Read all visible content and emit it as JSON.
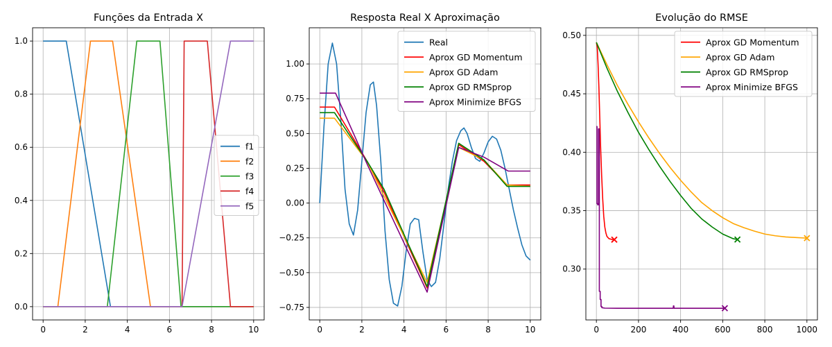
{
  "chart_data": [
    {
      "type": "line",
      "title": "Funções da Entrada X",
      "xlabel": "",
      "ylabel": "",
      "xlim": [
        -0.5,
        10.5
      ],
      "ylim": [
        -0.05,
        1.05
      ],
      "xticks": [
        0,
        2,
        4,
        6,
        8,
        10
      ],
      "xtick_labels": [
        "0",
        "2",
        "4",
        "6",
        "8",
        "10"
      ],
      "yticks": [
        0.0,
        0.2,
        0.4,
        0.6,
        0.8,
        1.0
      ],
      "ytick_labels": [
        "0.0",
        "0.2",
        "0.4",
        "0.6",
        "0.8",
        "1.0"
      ],
      "grid": true,
      "legend_position": "center-right",
      "series": [
        {
          "name": "f1",
          "color": "#1f77b4",
          "x": [
            0,
            1.1,
            3.2,
            10
          ],
          "y": [
            1,
            1,
            0,
            0
          ]
        },
        {
          "name": "f2",
          "color": "#ff7f0e",
          "x": [
            0,
            0.7,
            2.25,
            3.3,
            5.1,
            10
          ],
          "y": [
            0,
            0,
            1,
            1,
            0,
            0
          ]
        },
        {
          "name": "f3",
          "color": "#2ca02c",
          "x": [
            0,
            3.05,
            4.45,
            5.55,
            6.55,
            10
          ],
          "y": [
            0,
            0,
            1,
            1,
            0,
            0
          ]
        },
        {
          "name": "f4",
          "color": "#d62728",
          "x": [
            0,
            6.6,
            6.7,
            7.8,
            8.9,
            10
          ],
          "y": [
            0,
            0,
            1,
            1,
            0,
            0
          ]
        },
        {
          "name": "f5",
          "color": "#9467bd",
          "x": [
            0,
            6.6,
            8.9,
            10
          ],
          "y": [
            0,
            0,
            1,
            1
          ]
        }
      ]
    },
    {
      "type": "line",
      "title": "Resposta Real X Aproximação",
      "xlabel": "",
      "ylabel": "",
      "xlim": [
        -0.5,
        10.5
      ],
      "ylim": [
        -0.84,
        1.26
      ],
      "xticks": [
        0,
        2,
        4,
        6,
        8,
        10
      ],
      "xtick_labels": [
        "0",
        "2",
        "4",
        "6",
        "8",
        "10"
      ],
      "yticks": [
        -0.75,
        -0.5,
        -0.25,
        0.0,
        0.25,
        0.5,
        0.75,
        1.0
      ],
      "ytick_labels": [
        "−0.75",
        "−0.50",
        "−0.25",
        "0.00",
        "0.25",
        "0.50",
        "0.75",
        "1.00"
      ],
      "grid": true,
      "legend_position": "top-right",
      "series": [
        {
          "name": "Real",
          "color": "#1f77b4",
          "x": [
            0,
            0.2,
            0.4,
            0.6,
            0.8,
            1.0,
            1.2,
            1.4,
            1.6,
            1.8,
            2.0,
            2.2,
            2.4,
            2.55,
            2.7,
            2.9,
            3.1,
            3.3,
            3.5,
            3.7,
            3.9,
            4.1,
            4.3,
            4.5,
            4.7,
            4.9,
            5.1,
            5.3,
            5.5,
            5.7,
            5.9,
            6.1,
            6.3,
            6.5,
            6.7,
            6.85,
            7.0,
            7.2,
            7.4,
            7.6,
            7.8,
            8.0,
            8.2,
            8.4,
            8.6,
            8.8,
            9.0,
            9.2,
            9.4,
            9.6,
            9.8,
            10.0
          ],
          "y": [
            0.0,
            0.55,
            1.0,
            1.15,
            1.0,
            0.6,
            0.1,
            -0.15,
            -0.23,
            -0.05,
            0.3,
            0.65,
            0.85,
            0.87,
            0.7,
            0.3,
            -0.2,
            -0.55,
            -0.72,
            -0.74,
            -0.6,
            -0.35,
            -0.15,
            -0.11,
            -0.12,
            -0.35,
            -0.55,
            -0.6,
            -0.57,
            -0.4,
            -0.15,
            0.1,
            0.3,
            0.45,
            0.52,
            0.54,
            0.5,
            0.4,
            0.32,
            0.3,
            0.36,
            0.44,
            0.48,
            0.46,
            0.38,
            0.25,
            0.1,
            -0.05,
            -0.18,
            -0.3,
            -0.38,
            -0.41
          ]
        },
        {
          "name": "Aprox GD Momentum",
          "color": "#ff0000",
          "x": [
            0,
            0.7,
            2.25,
            3.05,
            5.1,
            6.6,
            7.8,
            8.9,
            10
          ],
          "y": [
            0.69,
            0.69,
            0.3,
            0.08,
            -0.61,
            0.42,
            0.3,
            0.13,
            0.13
          ]
        },
        {
          "name": "Aprox GD Adam",
          "color": "#ffa500",
          "x": [
            0,
            0.7,
            2.25,
            3.05,
            5.1,
            6.6,
            7.8,
            8.9,
            10
          ],
          "y": [
            0.61,
            0.61,
            0.3,
            0.05,
            -0.57,
            0.4,
            0.31,
            0.13,
            0.12
          ]
        },
        {
          "name": "Aprox GD RMSprop",
          "color": "#008000",
          "x": [
            0,
            0.7,
            2.25,
            3.05,
            5.1,
            6.6,
            7.8,
            8.9,
            10
          ],
          "y": [
            0.65,
            0.65,
            0.3,
            0.1,
            -0.6,
            0.43,
            0.31,
            0.12,
            0.12
          ]
        },
        {
          "name": "Aprox Minimize BFGS",
          "color": "#800080",
          "x": [
            0,
            0.75,
            2.25,
            3.05,
            5.1,
            6.6,
            7.8,
            8.95,
            10
          ],
          "y": [
            0.79,
            0.79,
            0.28,
            0.02,
            -0.64,
            0.4,
            0.33,
            0.23,
            0.23
          ]
        }
      ]
    },
    {
      "type": "line",
      "title": "Evolução do RMSE",
      "xlabel": "",
      "ylabel": "",
      "xlim": [
        -50,
        1050
      ],
      "ylim": [
        0.2565,
        0.5065
      ],
      "xticks": [
        0,
        200,
        400,
        600,
        800,
        1000
      ],
      "xtick_labels": [
        "0",
        "200",
        "400",
        "600",
        "800",
        "1000"
      ],
      "yticks": [
        0.3,
        0.35,
        0.4,
        0.45,
        0.5
      ],
      "ytick_labels": [
        "0.30",
        "0.35",
        "0.40",
        "0.45",
        "0.50"
      ],
      "grid": true,
      "legend_position": "top-right",
      "series": [
        {
          "name": "Aprox GD Momentum",
          "color": "#ff0000",
          "x": [
            0,
            4,
            8,
            12,
            16,
            20,
            25,
            30,
            35,
            40,
            45,
            50,
            55,
            60,
            65,
            70,
            75,
            80,
            85
          ],
          "y": [
            0.494,
            0.49,
            0.475,
            0.455,
            0.43,
            0.405,
            0.38,
            0.36,
            0.345,
            0.336,
            0.331,
            0.328,
            0.327,
            0.326,
            0.3258,
            0.3255,
            0.3253,
            0.3252,
            0.3252
          ],
          "end_marker": {
            "x": 85,
            "y": 0.3252
          }
        },
        {
          "name": "Aprox GD Adam",
          "color": "#ffa500",
          "x": [
            0,
            50,
            100,
            150,
            200,
            250,
            300,
            350,
            400,
            450,
            500,
            550,
            600,
            650,
            700,
            750,
            800,
            850,
            900,
            950,
            1000
          ],
          "y": [
            0.494,
            0.475,
            0.457,
            0.441,
            0.426,
            0.412,
            0.399,
            0.387,
            0.376,
            0.366,
            0.357,
            0.35,
            0.344,
            0.339,
            0.3355,
            0.3325,
            0.33,
            0.3285,
            0.3275,
            0.327,
            0.3265
          ],
          "end_marker": {
            "x": 1000,
            "y": 0.3265
          }
        },
        {
          "name": "Aprox GD RMSprop",
          "color": "#008000",
          "x": [
            0,
            50,
            100,
            150,
            200,
            250,
            300,
            350,
            400,
            450,
            500,
            550,
            600,
            650,
            670
          ],
          "y": [
            0.494,
            0.472,
            0.452,
            0.434,
            0.417,
            0.402,
            0.388,
            0.375,
            0.363,
            0.352,
            0.343,
            0.336,
            0.33,
            0.326,
            0.3253
          ],
          "end_marker": {
            "x": 670,
            "y": 0.3253
          }
        },
        {
          "name": "Aprox Minimize BFGS",
          "color": "#800080",
          "x": [
            0,
            3,
            3,
            6,
            6,
            10,
            10,
            14,
            14,
            18,
            18,
            22,
            22,
            26,
            26,
            40,
            100,
            365,
            366,
            368,
            369,
            400,
            500,
            610
          ],
          "y": [
            0.422,
            0.422,
            0.356,
            0.356,
            0.355,
            0.355,
            0.42,
            0.42,
            0.281,
            0.281,
            0.274,
            0.274,
            0.268,
            0.268,
            0.267,
            0.2666,
            0.2665,
            0.2665,
            0.2685,
            0.2685,
            0.2665,
            0.2665,
            0.2665,
            0.2665
          ],
          "end_marker": {
            "x": 610,
            "y": 0.2665
          }
        }
      ]
    }
  ]
}
